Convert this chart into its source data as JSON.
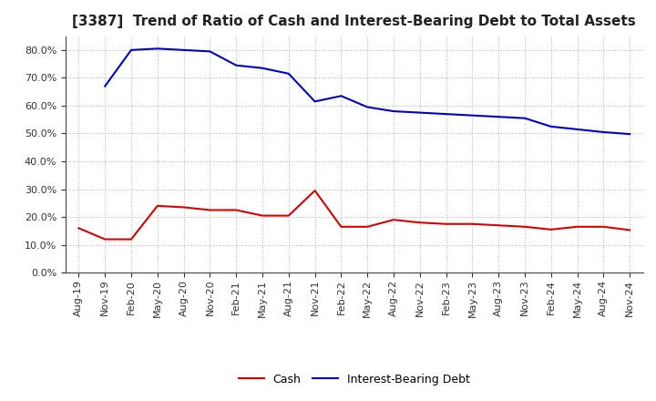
{
  "title": "[3387]  Trend of Ratio of Cash and Interest-Bearing Debt to Total Assets",
  "x_labels": [
    "Aug-19",
    "Nov-19",
    "Feb-20",
    "May-20",
    "Aug-20",
    "Nov-20",
    "Feb-21",
    "May-21",
    "Aug-21",
    "Nov-21",
    "Feb-22",
    "May-22",
    "Aug-22",
    "Nov-22",
    "Feb-23",
    "May-23",
    "Aug-23",
    "Nov-23",
    "Feb-24",
    "May-24",
    "Aug-24",
    "Nov-24"
  ],
  "cash": [
    0.16,
    0.12,
    0.12,
    0.24,
    0.235,
    0.225,
    0.225,
    0.205,
    0.205,
    0.295,
    0.165,
    0.165,
    0.19,
    0.18,
    0.175,
    0.175,
    0.17,
    0.165,
    0.155,
    0.165,
    0.165,
    0.153
  ],
  "ibd": [
    null,
    0.67,
    0.8,
    0.805,
    0.8,
    0.795,
    0.745,
    0.735,
    0.715,
    0.615,
    0.635,
    0.595,
    0.58,
    0.575,
    0.57,
    0.565,
    0.56,
    0.555,
    0.525,
    0.515,
    0.505,
    0.498
  ],
  "cash_color": "#dd0000",
  "ibd_color": "#0000cc",
  "background_color": "#ffffff",
  "grid_color": "#999999",
  "ylim": [
    0.0,
    0.85
  ],
  "yticks": [
    0.0,
    0.1,
    0.2,
    0.3,
    0.4,
    0.5,
    0.6,
    0.7,
    0.8
  ],
  "legend_cash": "Cash",
  "legend_ibd": "Interest-Bearing Debt",
  "title_fontsize": 11,
  "tick_fontsize": 8,
  "linewidth": 1.5
}
